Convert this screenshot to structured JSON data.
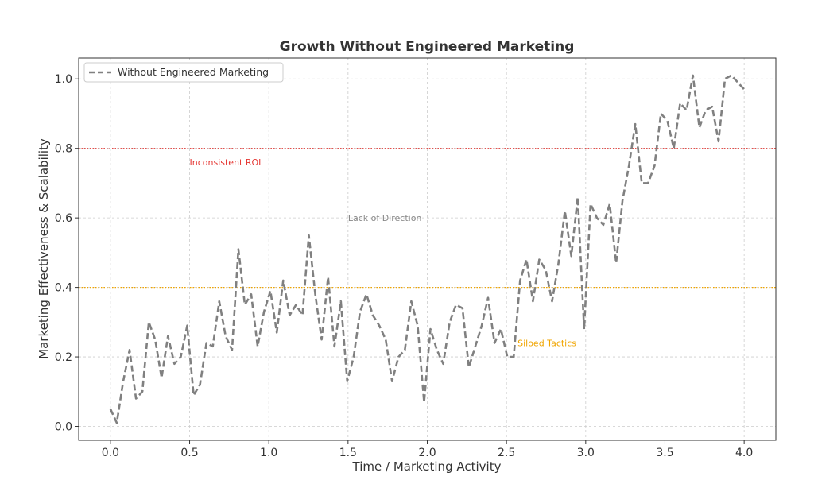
{
  "chart_data": {
    "type": "line",
    "title": "Growth Without Engineered Marketing",
    "xlabel": "Time / Marketing Activity",
    "ylabel": "Marketing Effectiveness & Scalability",
    "xlim": [
      -0.2,
      4.2
    ],
    "ylim": [
      -0.04,
      1.06
    ],
    "xticks": [
      0.0,
      0.5,
      1.0,
      1.5,
      2.0,
      2.5,
      3.0,
      3.5,
      4.0
    ],
    "xtick_labels": [
      "0.0",
      "0.5",
      "1.0",
      "1.5",
      "2.0",
      "2.5",
      "3.0",
      "3.5",
      "4.0"
    ],
    "yticks": [
      0.0,
      0.2,
      0.4,
      0.6,
      0.8,
      1.0
    ],
    "ytick_labels": [
      "0.0",
      "0.2",
      "0.4",
      "0.6",
      "0.8",
      "1.0"
    ],
    "grid": true,
    "legend_position": "top-left",
    "series": [
      {
        "name": "Without Engineered Marketing",
        "color": "#808080",
        "style": "dashed",
        "x_start": 0.0,
        "x_end": 4.0,
        "values": [
          0.05,
          0.01,
          0.13,
          0.22,
          0.08,
          0.1,
          0.3,
          0.25,
          0.14,
          0.26,
          0.18,
          0.2,
          0.29,
          0.09,
          0.12,
          0.24,
          0.23,
          0.36,
          0.26,
          0.22,
          0.51,
          0.35,
          0.38,
          0.23,
          0.33,
          0.39,
          0.27,
          0.42,
          0.32,
          0.35,
          0.32,
          0.55,
          0.38,
          0.25,
          0.43,
          0.23,
          0.36,
          0.13,
          0.2,
          0.33,
          0.38,
          0.32,
          0.29,
          0.25,
          0.13,
          0.2,
          0.22,
          0.36,
          0.29,
          0.07,
          0.28,
          0.22,
          0.18,
          0.3,
          0.35,
          0.34,
          0.17,
          0.23,
          0.29,
          0.37,
          0.24,
          0.28,
          0.2,
          0.2,
          0.42,
          0.48,
          0.36,
          0.48,
          0.45,
          0.36,
          0.47,
          0.62,
          0.49,
          0.66,
          0.28,
          0.64,
          0.6,
          0.58,
          0.64,
          0.47,
          0.65,
          0.75,
          0.87,
          0.7,
          0.7,
          0.75,
          0.9,
          0.88,
          0.8,
          0.93,
          0.91,
          1.01,
          0.86,
          0.91,
          0.92,
          0.82,
          1.0,
          1.01,
          0.99,
          0.97
        ]
      }
    ],
    "hlines": [
      {
        "y": 0.8,
        "color": "#e53935",
        "style": "dotted"
      },
      {
        "y": 0.4,
        "color": "#f0a500",
        "style": "dotted"
      }
    ],
    "annotations": [
      {
        "text": "Inconsistent ROI",
        "x": 0.5,
        "y": 0.76,
        "color": "#e53935"
      },
      {
        "text": "Lack of Direction",
        "x": 1.5,
        "y": 0.6,
        "color": "#888888"
      },
      {
        "text": "Siloed Tactics",
        "x": 2.57,
        "y": 0.24,
        "color": "#f0a500"
      }
    ]
  }
}
